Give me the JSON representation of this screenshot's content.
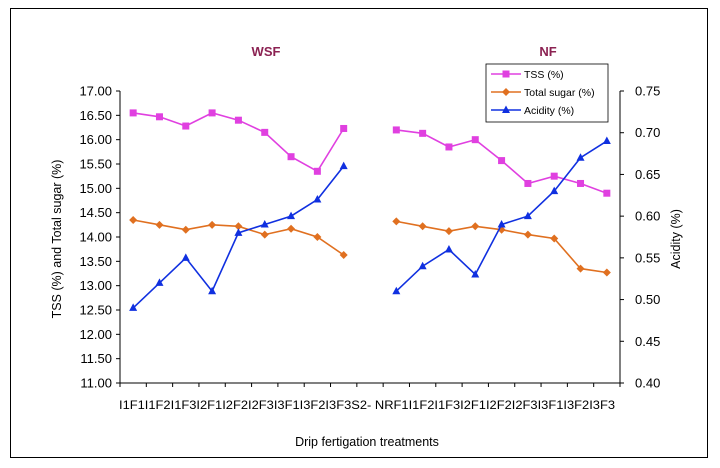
{
  "chart_data": {
    "type": "line",
    "xlabel": "Drip fertigation treatments",
    "ylabel_left": "TSS (%) and Total sugar (%)",
    "ylabel_right": "Acidity (%)",
    "ylim_left": [
      11.0,
      17.0
    ],
    "ylim_right": [
      0.4,
      0.75
    ],
    "yticks_left": [
      "17.00",
      "16.50",
      "16.00",
      "15.50",
      "15.00",
      "14.50",
      "14.00",
      "13.50",
      "13.00",
      "12.50",
      "12.00",
      "11.50",
      "11.00"
    ],
    "yticks_right": [
      "0.75",
      "0.70",
      "0.65",
      "0.60",
      "0.55",
      "0.50",
      "0.45",
      "0.40"
    ],
    "x_axis_text": "I1F1I1F2I1F3I2F1I2F2I2F3I3F1I3F2I3F3S2- NRF1I1F2I1F3I2F1I2F2I2F3I3F1I3F2I3F3",
    "group_labels": [
      "WSF",
      "NF"
    ],
    "grid": false,
    "legend_position": "top-right",
    "series": [
      {
        "name": "TSS (%)",
        "axis": "left",
        "color": "#E040E0",
        "marker": "square",
        "segments": [
          [
            16.55,
            16.47,
            16.28,
            16.55,
            16.4,
            16.15,
            15.65,
            15.35,
            16.23
          ],
          [
            16.2,
            16.13,
            15.85,
            16.0,
            15.57,
            15.1,
            15.25,
            15.1,
            14.9
          ]
        ]
      },
      {
        "name": "Total sugar (%)",
        "axis": "left",
        "color": "#E07020",
        "marker": "diamond",
        "segments": [
          [
            14.35,
            14.25,
            14.15,
            14.25,
            14.22,
            14.05,
            14.17,
            14.0,
            13.63
          ],
          [
            14.32,
            14.22,
            14.12,
            14.22,
            14.15,
            14.05,
            13.97,
            13.35,
            13.27
          ]
        ]
      },
      {
        "name": "Acidity (%)",
        "axis": "right",
        "color": "#1030E0",
        "marker": "triangle",
        "segments": [
          [
            0.49,
            0.52,
            0.55,
            0.51,
            0.58,
            0.59,
            0.6,
            0.62,
            0.66
          ],
          [
            0.51,
            0.54,
            0.56,
            0.53,
            0.59,
            0.6,
            0.63,
            0.67,
            0.69
          ]
        ]
      }
    ]
  }
}
